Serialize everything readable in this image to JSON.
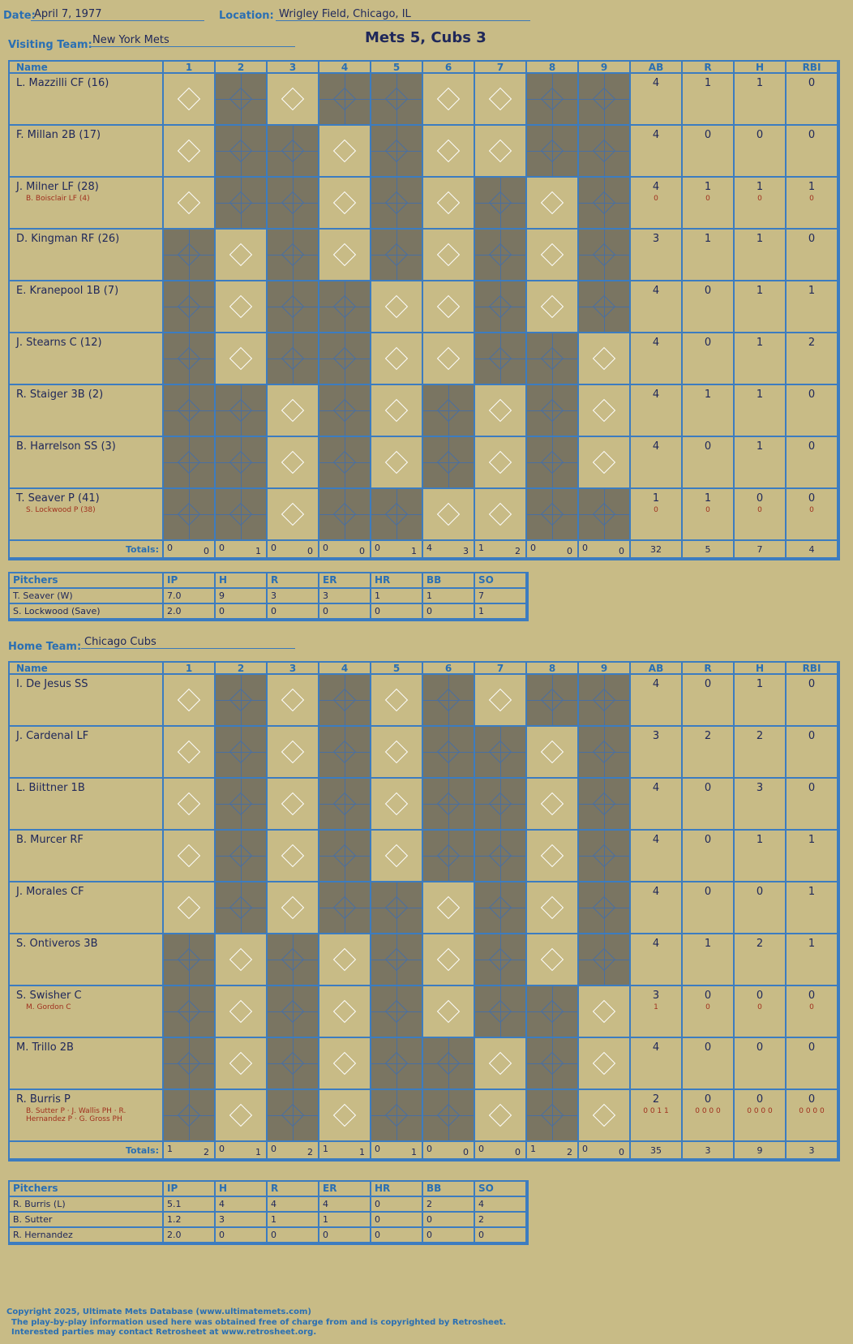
{
  "header": {
    "date_label": "Date:",
    "date": "April 7, 1977",
    "location_label": "Location:",
    "location": "Wrigley Field, Chicago, IL",
    "visiting_label": "Visiting Team:",
    "visiting": "New York Mets",
    "home_label": "Home Team:",
    "home": "Chicago Cubs",
    "result": "Mets 5, Cubs 3"
  },
  "columns": {
    "name": "Name",
    "innings": [
      "1",
      "2",
      "3",
      "4",
      "5",
      "6",
      "7",
      "8",
      "9"
    ],
    "stats": [
      "AB",
      "R",
      "H",
      "RBI"
    ],
    "totals": "Totals:",
    "r": "R",
    "h": "H"
  },
  "visitors": {
    "rows": [
      {
        "name": "L. Mazzilli CF (16)",
        "sub": "",
        "stats": [
          "4",
          "1",
          "1",
          "0"
        ],
        "sub_stats": [
          "",
          "",
          "",
          ""
        ]
      },
      {
        "name": "F. Millan 2B (17)",
        "sub": "",
        "stats": [
          "4",
          "0",
          "0",
          "0"
        ],
        "sub_stats": [
          "",
          "",
          "",
          ""
        ]
      },
      {
        "name": "J. Milner LF (28)",
        "sub": "B. Boisclair LF (4)",
        "stats": [
          "4",
          "1",
          "1",
          "1"
        ],
        "sub_stats": [
          "0",
          "0",
          "0",
          "0"
        ]
      },
      {
        "name": "D. Kingman RF (26)",
        "sub": "",
        "stats": [
          "3",
          "1",
          "1",
          "0"
        ],
        "sub_stats": [
          "",
          "",
          "",
          ""
        ]
      },
      {
        "name": "E. Kranepool 1B (7)",
        "sub": "",
        "stats": [
          "4",
          "0",
          "1",
          "1"
        ],
        "sub_stats": [
          "",
          "",
          "",
          ""
        ]
      },
      {
        "name": "J. Stearns C (12)",
        "sub": "",
        "stats": [
          "4",
          "0",
          "1",
          "2"
        ],
        "sub_stats": [
          "",
          "",
          "",
          ""
        ]
      },
      {
        "name": "R. Staiger 3B (2)",
        "sub": "",
        "stats": [
          "4",
          "1",
          "1",
          "0"
        ],
        "sub_stats": [
          "",
          "",
          "",
          ""
        ]
      },
      {
        "name": "B. Harrelson SS (3)",
        "sub": "",
        "stats": [
          "4",
          "0",
          "1",
          "0"
        ],
        "sub_stats": [
          "",
          "",
          "",
          ""
        ]
      },
      {
        "name": "T. Seaver P (41)",
        "sub": "S. Lockwood P (38)",
        "stats": [
          "1",
          "1",
          "0",
          "0"
        ],
        "sub_stats": [
          "0",
          "0",
          "0",
          "0"
        ]
      }
    ],
    "totals": {
      "r": [
        "0",
        "0",
        "0",
        "0",
        "0",
        "4",
        "1",
        "0",
        "0"
      ],
      "h": [
        "0",
        "1",
        "0",
        "0",
        "1",
        "3",
        "2",
        "0",
        "0"
      ],
      "stats": [
        "32",
        "5",
        "7",
        "4"
      ]
    }
  },
  "home_team": {
    "rows": [
      {
        "name": "I. De Jesus SS",
        "sub": "",
        "stats": [
          "4",
          "0",
          "1",
          "0"
        ],
        "sub_stats": [
          "",
          "",
          "",
          ""
        ]
      },
      {
        "name": "J. Cardenal LF",
        "sub": "",
        "stats": [
          "3",
          "2",
          "2",
          "0"
        ],
        "sub_stats": [
          "",
          "",
          "",
          ""
        ]
      },
      {
        "name": "L. Biittner 1B",
        "sub": "",
        "stats": [
          "4",
          "0",
          "3",
          "0"
        ],
        "sub_stats": [
          "",
          "",
          "",
          ""
        ]
      },
      {
        "name": "B. Murcer RF",
        "sub": "",
        "stats": [
          "4",
          "0",
          "1",
          "1"
        ],
        "sub_stats": [
          "",
          "",
          "",
          ""
        ]
      },
      {
        "name": "J. Morales CF",
        "sub": "",
        "stats": [
          "4",
          "0",
          "0",
          "1"
        ],
        "sub_stats": [
          "",
          "",
          "",
          ""
        ]
      },
      {
        "name": "S. Ontiveros 3B",
        "sub": "",
        "stats": [
          "4",
          "1",
          "2",
          "1"
        ],
        "sub_stats": [
          "",
          "",
          "",
          ""
        ]
      },
      {
        "name": "S. Swisher C",
        "sub": "M. Gordon C",
        "stats": [
          "3",
          "0",
          "0",
          "0"
        ],
        "sub_stats": [
          "1",
          "0",
          "0",
          "0"
        ]
      },
      {
        "name": "M. Trillo 2B",
        "sub": "",
        "stats": [
          "4",
          "0",
          "0",
          "0"
        ],
        "sub_stats": [
          "",
          "",
          "",
          ""
        ]
      },
      {
        "name": "R. Burris P",
        "sub": "B. Sutter P · J. Wallis PH · R. Hernandez P · G. Gross PH",
        "stats": [
          "2",
          "0",
          "0",
          "0"
        ],
        "sub_stats": [
          "0 0 1 1",
          "0 0 0 0",
          "0 0 0 0",
          "0 0 0 0"
        ]
      }
    ],
    "totals": {
      "r": [
        "1",
        "0",
        "0",
        "1",
        "0",
        "0",
        "0",
        "1",
        "0"
      ],
      "h": [
        "2",
        "1",
        "2",
        "1",
        "1",
        "0",
        "0",
        "2",
        "0"
      ],
      "stats": [
        "35",
        "3",
        "9",
        "3"
      ]
    }
  },
  "pitch_cols": [
    "Pitchers",
    "IP",
    "H",
    "R",
    "ER",
    "HR",
    "BB",
    "SO"
  ],
  "visitor_pitchers": [
    [
      "T. Seaver (W)",
      "7.0",
      "9",
      "3",
      "3",
      "1",
      "1",
      "7"
    ],
    [
      "S. Lockwood (Save)",
      "2.0",
      "0",
      "0",
      "0",
      "0",
      "0",
      "1"
    ]
  ],
  "home_pitchers": [
    [
      "R. Burris (L)",
      "5.1",
      "4",
      "4",
      "4",
      "0",
      "2",
      "4"
    ],
    [
      "B. Sutter",
      "1.2",
      "3",
      "1",
      "1",
      "0",
      "0",
      "2"
    ],
    [
      "R. Hernandez",
      "2.0",
      "0",
      "0",
      "0",
      "0",
      "0",
      "0"
    ]
  ],
  "footer": {
    "line1": "Copyright 2025, Ultimate Mets Database (www.ultimatemets.com)",
    "line2": "The play-by-play information used here was obtained free of charge from and is copyrighted by Retrosheet.",
    "line3": "Interested parties may contact Retrosheet at www.retrosheet.org."
  }
}
